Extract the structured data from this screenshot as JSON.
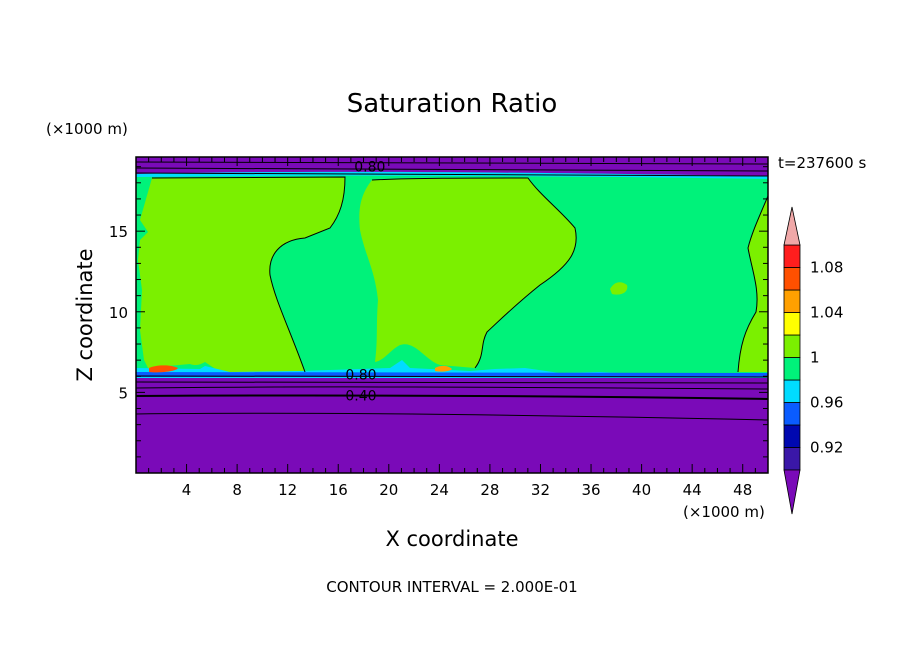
{
  "chart_data": {
    "type": "heatmap",
    "title": "Saturation Ratio",
    "xlabel": "X coordinate",
    "ylabel": "Z coordinate",
    "x_unit": "(×1000 m)",
    "y_unit": "(×1000 m)",
    "time_label": "t=237600 s",
    "footer": "CONTOUR INTERVAL = 2.000E-01",
    "xlim": [
      0,
      50
    ],
    "ylim": [
      0,
      19.6
    ],
    "x_ticks": [
      "4",
      "8",
      "12",
      "16",
      "20",
      "24",
      "28",
      "32",
      "36",
      "40",
      "44",
      "48"
    ],
    "y_ticks": [
      "5",
      "10",
      "15"
    ],
    "contour_labels": [
      {
        "text": "0.80",
        "x": 18.5,
        "z": 19.0
      },
      {
        "text": "0.80",
        "x": 17.8,
        "z": 6.1
      },
      {
        "text": "0.40",
        "x": 17.8,
        "z": 4.8
      }
    ],
    "colorbar": {
      "tick_labels": [
        "0.92",
        "0.96",
        "1",
        "1.04",
        "1.08"
      ],
      "levels": [
        0.9,
        0.92,
        0.94,
        0.96,
        0.98,
        1.0,
        1.02,
        1.04,
        1.06,
        1.08,
        1.1
      ],
      "colors": [
        "#7a0ab8",
        "#3a17a8",
        "#0008b0",
        "#0a5cff",
        "#00dcff",
        "#00f27a",
        "#7bf000",
        "#ffff00",
        "#ffa000",
        "#ff5000",
        "#ff1e1e",
        "#f0a8a8"
      ],
      "below_color": "#7a0ab8",
      "above_color": "#f0a8a8"
    },
    "regions": {
      "dry_lower_layer_top_z": 6.3,
      "dry_upper_layer_bottom_z": 18.6,
      "upper_cloud_boundary_z": 18.9,
      "colors": {
        "dry": "#7a0ab8",
        "saturated": "#00f27a",
        "supersaturated": "#7bf000",
        "edge": "#00dcff",
        "edge_blue": "#0a5cff",
        "hot": "#ff5000",
        "very_hot": "#ffa000"
      }
    }
  }
}
